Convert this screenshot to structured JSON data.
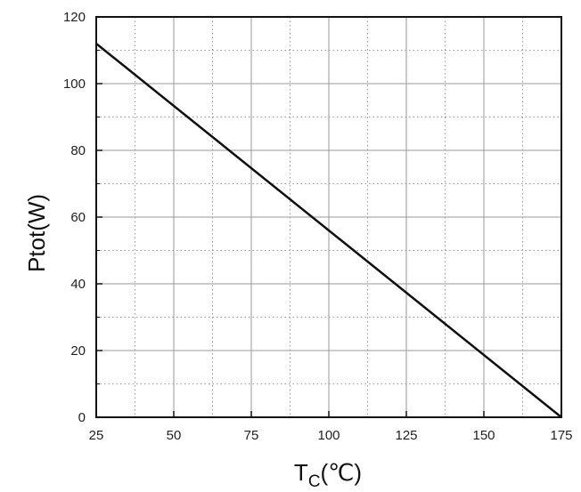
{
  "chart_data": {
    "type": "line",
    "title": "",
    "xlabel": "T",
    "xlabel_sub": "C",
    "xlabel_unit": "(℃)",
    "ylabel": "Ptot(W)",
    "xlim": [
      25,
      175
    ],
    "ylim": [
      0,
      120
    ],
    "xticks": [
      25,
      50,
      75,
      100,
      125,
      150,
      175
    ],
    "yticks": [
      0,
      20,
      40,
      60,
      80,
      100,
      120
    ],
    "grid": true,
    "series": [
      {
        "x": [
          25,
          175
        ],
        "y": [
          112,
          0
        ]
      }
    ],
    "colors": {
      "line": "#111111",
      "grid": "#9a9a9a",
      "axis": "#111111"
    }
  }
}
